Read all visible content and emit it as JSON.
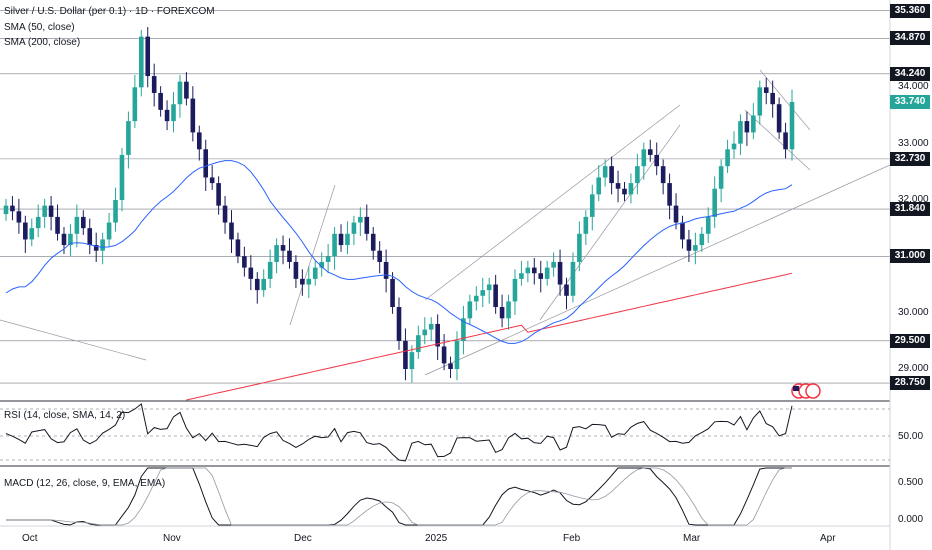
{
  "header": {
    "title": "Silver / U.S. Dollar (per 0.1) · 1D · FOREXCOM",
    "sma50_label": "SMA (50, close)",
    "sma200_label": "SMA (200, close)"
  },
  "price_panel": {
    "ylim": [
      28.45,
      35.55
    ],
    "level_boxes": [
      "35.360",
      "34.870",
      "34.240",
      "33.740",
      "32.730",
      "31.840",
      "31.000",
      "29.500",
      "28.750"
    ],
    "current_price": "33.740",
    "current_price_value": 33.74,
    "current_color": "#26a69a",
    "scale_labels": [
      "34.000",
      "33.000",
      "32.000",
      "30.000",
      "29.000"
    ],
    "horizontal_levels": [
      35.36,
      34.87,
      34.24,
      32.73,
      31.84,
      31.0,
      29.5,
      28.75
    ]
  },
  "rsi_panel": {
    "label": "RSI (14, close, SMA, 14, 2)",
    "scale_label": "50.00"
  },
  "macd_panel": {
    "label": "MACD (12, 26, close, 9, EMA, EMA)",
    "scale_labels": [
      "0.500",
      "0.000"
    ]
  },
  "x_axis": {
    "labels": [
      "Oct",
      "Nov",
      "Dec",
      "2025",
      "Feb",
      "Mar",
      "Apr"
    ]
  },
  "colors": {
    "up": "#26a69a",
    "down": "#1b1b5e",
    "sma50": "#2962ff",
    "sma200": "#f23645"
  },
  "chart_data": {
    "type": "candlestick",
    "title": "Silver / U.S. Dollar (per 0.1) · 1D · FOREXCOM",
    "series": [
      {
        "name": "SMA (50, close)"
      },
      {
        "name": "SMA (200, close)"
      }
    ],
    "ohlc_close": [
      31.9,
      31.8,
      31.6,
      31.3,
      31.5,
      31.7,
      31.9,
      31.7,
      31.4,
      31.2,
      31.4,
      31.7,
      31.5,
      31.2,
      31.1,
      31.3,
      31.6,
      32.0,
      32.8,
      33.4,
      34.0,
      34.9,
      34.2,
      33.9,
      33.6,
      33.4,
      33.7,
      34.1,
      33.8,
      33.2,
      32.9,
      32.4,
      32.3,
      31.9,
      31.6,
      31.3,
      31.0,
      30.8,
      30.6,
      30.4,
      30.6,
      30.9,
      31.2,
      31.1,
      30.9,
      30.6,
      30.5,
      30.6,
      30.8,
      30.9,
      31.0,
      31.4,
      31.2,
      31.4,
      31.6,
      31.7,
      31.4,
      31.1,
      30.9,
      30.6,
      30.1,
      29.5,
      29.0,
      29.3,
      29.6,
      29.7,
      29.8,
      29.4,
      29.1,
      29.0,
      29.5,
      29.9,
      30.2,
      30.3,
      30.4,
      30.5,
      30.1,
      29.9,
      30.2,
      30.6,
      30.7,
      30.8,
      30.7,
      30.6,
      30.8,
      30.9,
      30.5,
      30.3,
      30.9,
      31.4,
      31.7,
      32.1,
      32.4,
      32.6,
      32.3,
      32.2,
      32.1,
      32.3,
      32.6,
      32.9,
      32.8,
      32.6,
      32.3,
      31.9,
      31.6,
      31.3,
      31.1,
      31.2,
      31.4,
      31.7,
      32.2,
      32.6,
      32.9,
      33.0,
      33.4,
      33.2,
      33.5,
      34.0,
      33.9,
      33.7,
      33.2,
      32.9,
      33.74
    ]
  }
}
